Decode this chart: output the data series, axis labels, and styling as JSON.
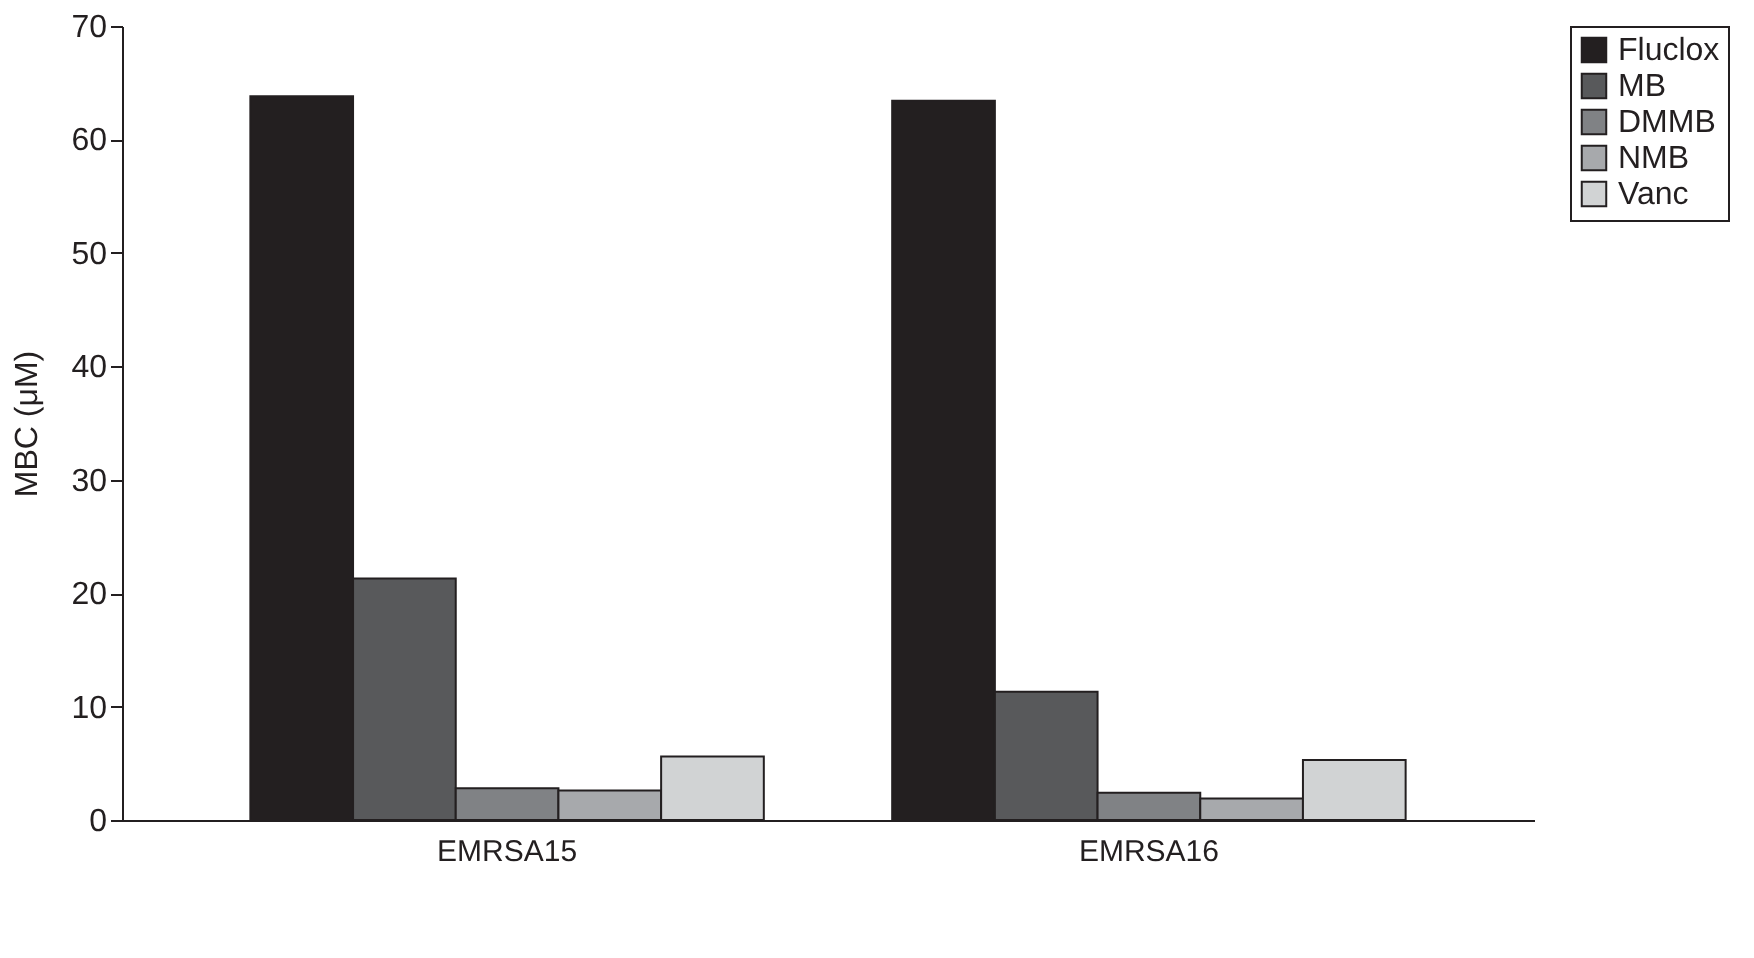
{
  "chart_data": {
    "type": "bar",
    "ylabel": "MBC (μM)",
    "categories": [
      "EMRSA15",
      "EMRSA16"
    ],
    "series": [
      {
        "name": "Fluclox",
        "color": "#231f20",
        "values": [
          63.8,
          63.4
        ]
      },
      {
        "name": "MB",
        "color": "#58595b",
        "values": [
          21.3,
          11.3
        ]
      },
      {
        "name": "DMMB",
        "color": "#808285",
        "values": [
          2.8,
          2.4
        ]
      },
      {
        "name": "NMB",
        "color": "#a7a9ac",
        "values": [
          2.6,
          1.9
        ]
      },
      {
        "name": "Vanc",
        "color": "#d1d3d4",
        "values": [
          5.6,
          5.3
        ]
      }
    ],
    "ylim": [
      0,
      70
    ],
    "yticks": [
      0,
      10,
      20,
      30,
      40,
      50,
      60,
      70
    ],
    "grid": false,
    "legend": "right"
  }
}
